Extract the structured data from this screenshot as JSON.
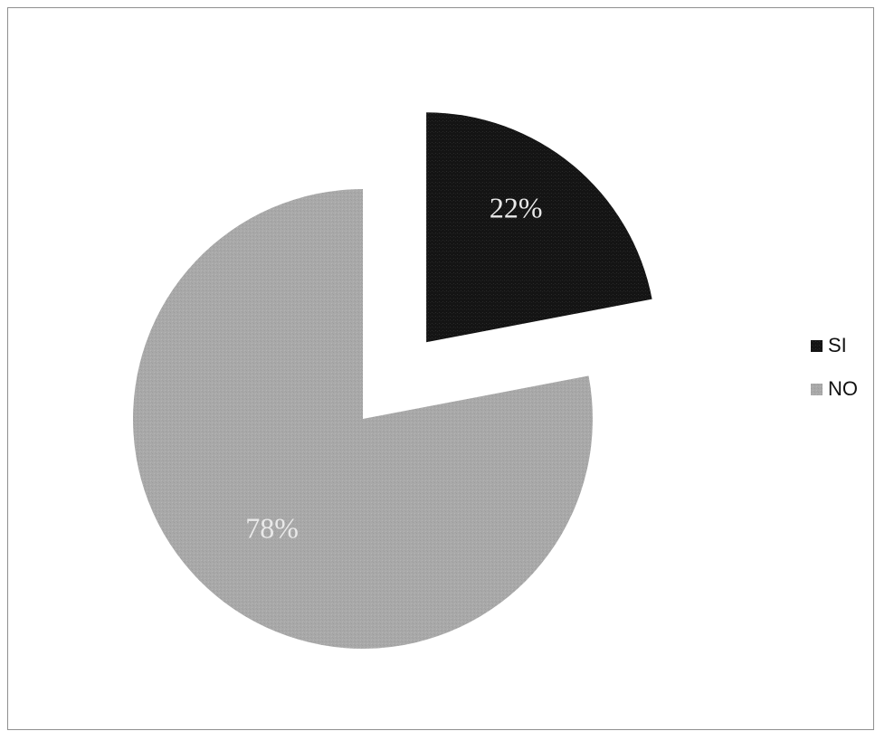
{
  "chart_data": {
    "type": "pie",
    "categories": [
      "SI",
      "NO"
    ],
    "values": [
      22,
      78
    ],
    "labels": [
      "22%",
      "78%"
    ],
    "colors": [
      "#141414",
      "#a9a9a9"
    ],
    "exploded": [
      "SI"
    ],
    "legend_position": "right"
  }
}
